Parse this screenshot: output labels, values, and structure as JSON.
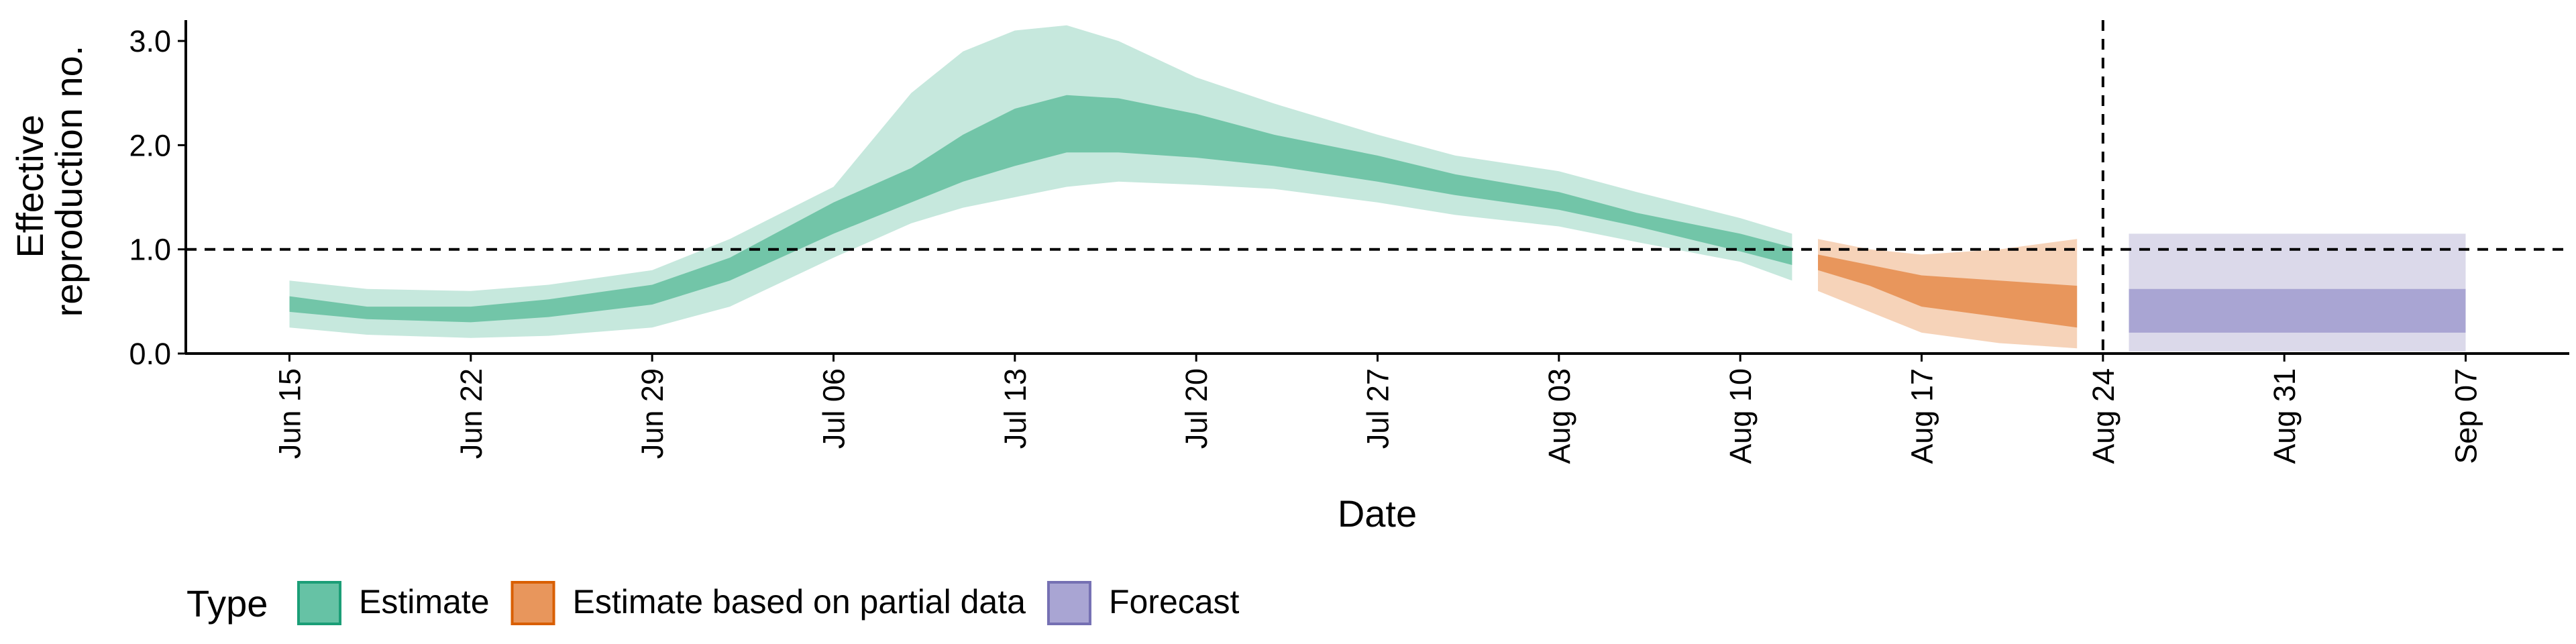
{
  "chart_data": {
    "type": "area",
    "xlabel": "Date",
    "ylabel": [
      "Effective",
      "reproduction no."
    ],
    "ylim": [
      0,
      3.2
    ],
    "yticks": [
      0.0,
      1.0,
      2.0,
      3.0
    ],
    "ytick_labels": [
      "0.0",
      "1.0",
      "2.0",
      "3.0"
    ],
    "xlim": [
      "2020-06-11",
      "2020-09-11"
    ],
    "xticks": [
      "2020-06-15",
      "2020-06-22",
      "2020-06-29",
      "2020-07-06",
      "2020-07-13",
      "2020-07-20",
      "2020-07-27",
      "2020-08-03",
      "2020-08-10",
      "2020-08-17",
      "2020-08-24",
      "2020-08-31",
      "2020-09-07"
    ],
    "xtick_labels": [
      "Jun 15",
      "Jun 22",
      "Jun 29",
      "Jul 06",
      "Jul 13",
      "Jul 20",
      "Jul 27",
      "Aug 03",
      "Aug 10",
      "Aug 17",
      "Aug 24",
      "Aug 31",
      "Sep 07"
    ],
    "hline": 1.0,
    "vline": "2020-08-24",
    "grid": false,
    "legend": {
      "title": "Type",
      "position": "bottom-left",
      "items": [
        {
          "label": "Estimate",
          "fill": "#66c2a5",
          "stroke": "#1b9e77"
        },
        {
          "label": "Estimate based on partial data",
          "fill": "#e8965c",
          "stroke": "#d95f02"
        },
        {
          "label": "Forecast",
          "fill": "#a9a5d3",
          "stroke": "#7570b3"
        }
      ]
    },
    "series": [
      {
        "name": "Estimate",
        "color_outer": "#c6e8dd",
        "color_inner": "#72c5a8",
        "x": [
          "2020-06-15",
          "2020-06-18",
          "2020-06-22",
          "2020-06-25",
          "2020-06-29",
          "2020-07-02",
          "2020-07-06",
          "2020-07-09",
          "2020-07-11",
          "2020-07-13",
          "2020-07-15",
          "2020-07-17",
          "2020-07-20",
          "2020-07-23",
          "2020-07-27",
          "2020-07-30",
          "2020-08-03",
          "2020-08-06",
          "2020-08-10",
          "2020-08-12"
        ],
        "upper_90": [
          0.7,
          0.62,
          0.6,
          0.66,
          0.8,
          1.1,
          1.6,
          2.5,
          2.9,
          3.1,
          3.15,
          3.0,
          2.65,
          2.4,
          2.1,
          1.9,
          1.75,
          1.55,
          1.3,
          1.15
        ],
        "upper_50": [
          0.55,
          0.45,
          0.45,
          0.52,
          0.66,
          0.92,
          1.45,
          1.78,
          2.1,
          2.35,
          2.48,
          2.45,
          2.3,
          2.1,
          1.9,
          1.72,
          1.55,
          1.35,
          1.15,
          1.02
        ],
        "lower_50": [
          0.4,
          0.33,
          0.3,
          0.35,
          0.47,
          0.7,
          1.15,
          1.45,
          1.65,
          1.8,
          1.93,
          1.93,
          1.88,
          1.8,
          1.65,
          1.52,
          1.38,
          1.22,
          0.98,
          0.85
        ],
        "lower_90": [
          0.25,
          0.18,
          0.15,
          0.17,
          0.25,
          0.45,
          0.92,
          1.25,
          1.4,
          1.5,
          1.6,
          1.65,
          1.62,
          1.58,
          1.45,
          1.33,
          1.22,
          1.07,
          0.88,
          0.7
        ]
      },
      {
        "name": "Estimate based on partial data",
        "color_outer": "#f6d3b9",
        "color_inner": "#e8965c",
        "x": [
          "2020-08-13",
          "2020-08-15",
          "2020-08-17",
          "2020-08-20",
          "2020-08-23"
        ],
        "upper_90": [
          1.1,
          1.0,
          0.95,
          1.0,
          1.1
        ],
        "upper_50": [
          0.95,
          0.85,
          0.75,
          0.7,
          0.65
        ],
        "lower_50": [
          0.8,
          0.65,
          0.45,
          0.35,
          0.25
        ],
        "lower_90": [
          0.6,
          0.4,
          0.2,
          0.1,
          0.05
        ]
      },
      {
        "name": "Forecast",
        "color_outer": "#dbd9ea",
        "color_inner": "#a9a5d3",
        "x": [
          "2020-08-25",
          "2020-09-07"
        ],
        "upper_90": [
          1.15,
          1.15
        ],
        "upper_50": [
          0.62,
          0.62
        ],
        "lower_50": [
          0.2,
          0.2
        ],
        "lower_90": [
          0.02,
          0.02
        ]
      }
    ]
  }
}
